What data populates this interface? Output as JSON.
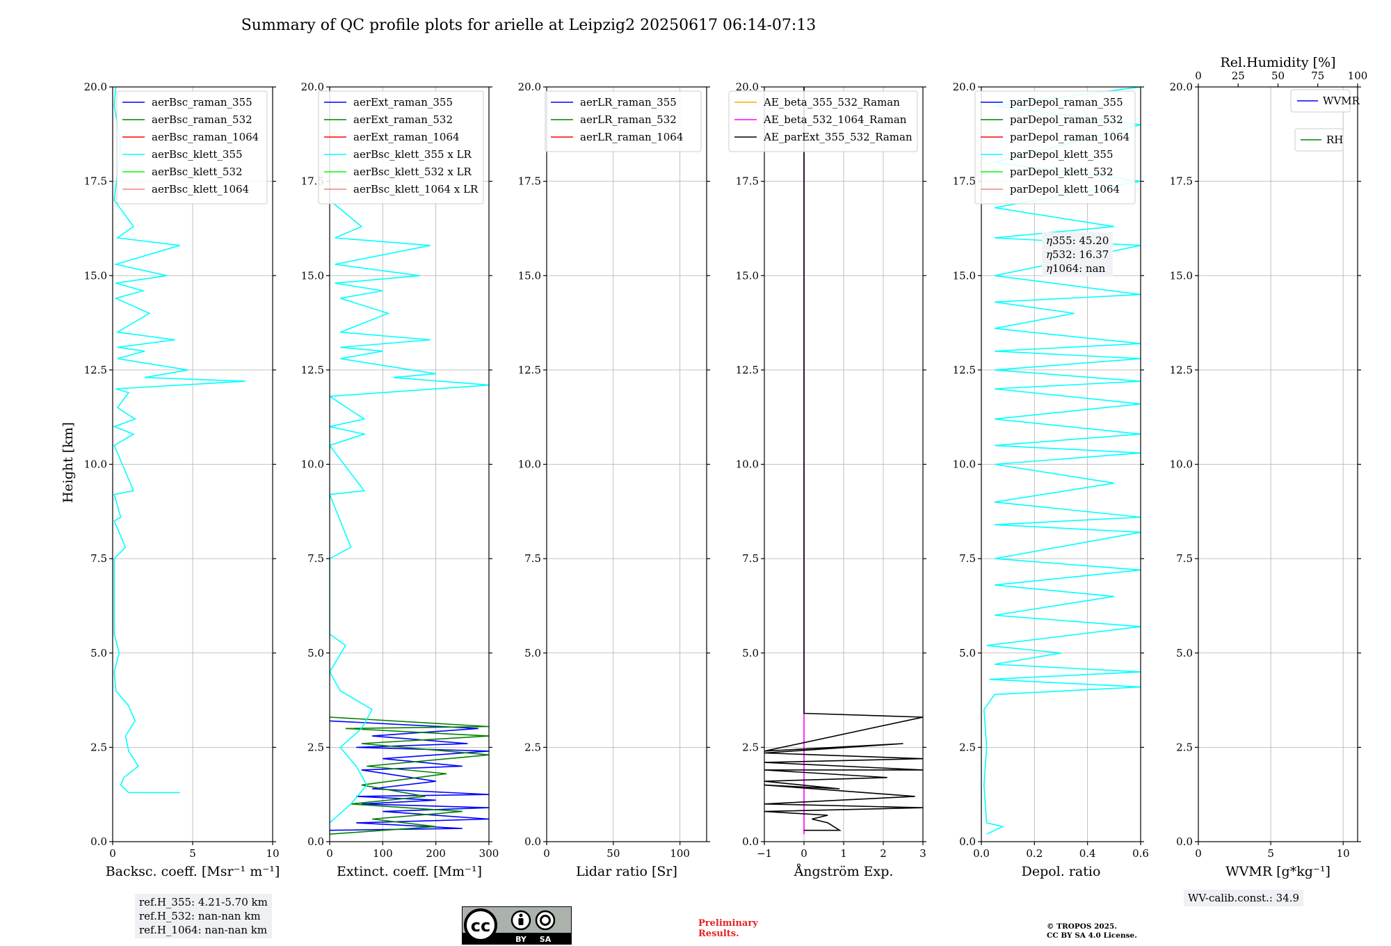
{
  "title": "Summary of QC profile plots for arielle at Leipzig2 20250617 06:14-07:13",
  "y_axis_label": "Height [km]",
  "ref_heights": [
    "ref.H_355: 4.21-5.70 km",
    "ref.H_532: nan-nan km",
    "ref.H_1064: nan-nan km"
  ],
  "eta_values": [
    "355: 45.20",
    "532: 16.37",
    "1064: nan"
  ],
  "eta_symbol": "η",
  "wv_calib": "WV-calib.const.: 34.9",
  "preliminary": [
    "Preliminary",
    "Results."
  ],
  "copyright": [
    "© TROPOS 2025.",
    "CC BY SA 4.0 License."
  ],
  "license_badge": {
    "cc": "cc",
    "by": "BY",
    "sa": "SA"
  },
  "colors": {
    "blue": "#0000ff",
    "green": "#008000",
    "red": "#ff0000",
    "cyan": "#00ffff",
    "lime": "#00ff00",
    "salmon": "#f08080",
    "orange": "#ffa500",
    "magenta": "#ff00ff",
    "black": "#000000"
  },
  "chart_data": [
    {
      "type": "line",
      "xlabel": "Backsc. coeff. [Msr⁻¹ m⁻¹]",
      "xlim": [
        0,
        10
      ],
      "ylim": [
        0,
        20
      ],
      "xticks": [
        "0",
        "5",
        "10"
      ],
      "yticks": [
        "0.0",
        "2.5",
        "5.0",
        "7.5",
        "10.0",
        "12.5",
        "15.0",
        "17.5",
        "20.0"
      ],
      "grid": true,
      "legend_position": "top-right",
      "series": [
        {
          "name": "aerBsc_raman_355",
          "color": "#0000ff",
          "points": []
        },
        {
          "name": "aerBsc_raman_532",
          "color": "#008000",
          "points": []
        },
        {
          "name": "aerBsc_raman_1064",
          "color": "#ff0000",
          "points": []
        },
        {
          "name": "aerBsc_klett_355",
          "color": "#00ffff",
          "points": [
            [
              4.2,
              1.3
            ],
            [
              1.0,
              1.3
            ],
            [
              0.5,
              1.5
            ],
            [
              0.7,
              1.7
            ],
            [
              1.6,
              2.0
            ],
            [
              1.0,
              2.4
            ],
            [
              0.8,
              2.8
            ],
            [
              1.4,
              3.2
            ],
            [
              1.0,
              3.6
            ],
            [
              0.2,
              4.0
            ],
            [
              0.1,
              4.5
            ],
            [
              0.4,
              5.0
            ],
            [
              0.1,
              5.5
            ],
            [
              0.1,
              7.5
            ],
            [
              0.8,
              7.8
            ],
            [
              0.1,
              8.5
            ],
            [
              0.5,
              8.6
            ],
            [
              0.1,
              9.2
            ],
            [
              1.3,
              9.3
            ],
            [
              0.1,
              10.5
            ],
            [
              1.3,
              10.8
            ],
            [
              0.1,
              11.0
            ],
            [
              1.4,
              11.2
            ],
            [
              0.3,
              11.5
            ],
            [
              1.0,
              11.9
            ],
            [
              0.2,
              12.0
            ],
            [
              8.3,
              12.2
            ],
            [
              2.0,
              12.3
            ],
            [
              4.7,
              12.5
            ],
            [
              0.3,
              12.8
            ],
            [
              2.0,
              13.0
            ],
            [
              0.3,
              13.1
            ],
            [
              3.9,
              13.3
            ],
            [
              0.3,
              13.5
            ],
            [
              2.3,
              14.0
            ],
            [
              0.2,
              14.4
            ],
            [
              1.9,
              14.6
            ],
            [
              0.2,
              14.8
            ],
            [
              3.4,
              15.0
            ],
            [
              0.2,
              15.3
            ],
            [
              4.2,
              15.8
            ],
            [
              0.3,
              16.0
            ],
            [
              1.3,
              16.3
            ],
            [
              0.1,
              17.0
            ],
            [
              0.5,
              18.5
            ],
            [
              0.1,
              19.5
            ],
            [
              0.2,
              20.0
            ]
          ]
        },
        {
          "name": "aerBsc_klett_532",
          "color": "#00ff00",
          "points": []
        },
        {
          "name": "aerBsc_klett_1064",
          "color": "#f08080",
          "points": []
        }
      ]
    },
    {
      "type": "line",
      "xlabel": "Extinct. coeff. [Mm⁻¹]",
      "xlim": [
        0,
        300
      ],
      "ylim": [
        0,
        20
      ],
      "xticks": [
        "0",
        "100",
        "200",
        "300"
      ],
      "yticks": [
        "0.0",
        "2.5",
        "5.0",
        "7.5",
        "10.0",
        "12.5",
        "15.0",
        "17.5",
        "20.0"
      ],
      "grid": true,
      "legend_position": "top-right",
      "series": [
        {
          "name": "aerExt_raman_355",
          "color": "#0000ff",
          "points": [
            [
              0,
              0.3
            ],
            [
              250,
              0.35
            ],
            [
              50,
              0.5
            ],
            [
              300,
              0.6
            ],
            [
              100,
              0.8
            ],
            [
              300,
              0.9
            ],
            [
              60,
              1.0
            ],
            [
              200,
              1.1
            ],
            [
              50,
              1.2
            ],
            [
              300,
              1.25
            ],
            [
              80,
              1.4
            ],
            [
              200,
              1.6
            ],
            [
              60,
              1.9
            ],
            [
              250,
              2.0
            ],
            [
              100,
              2.2
            ],
            [
              300,
              2.4
            ],
            [
              50,
              2.5
            ],
            [
              260,
              2.6
            ],
            [
              80,
              2.8
            ],
            [
              280,
              3.0
            ],
            [
              0,
              3.2
            ]
          ]
        },
        {
          "name": "aerExt_raman_532",
          "color": "#008000",
          "points": [
            [
              0,
              0.2
            ],
            [
              200,
              0.4
            ],
            [
              80,
              0.6
            ],
            [
              250,
              0.8
            ],
            [
              40,
              1.0
            ],
            [
              180,
              1.2
            ],
            [
              60,
              1.5
            ],
            [
              220,
              1.8
            ],
            [
              70,
              2.0
            ],
            [
              300,
              2.3
            ],
            [
              60,
              2.6
            ],
            [
              300,
              2.8
            ],
            [
              30,
              3.0
            ],
            [
              300,
              3.05
            ],
            [
              0,
              3.3
            ]
          ]
        },
        {
          "name": "aerExt_raman_1064",
          "color": "#ff0000",
          "points": []
        },
        {
          "name": "aerBsc_klett_355 x LR",
          "color": "#00ffff",
          "points": [
            [
              0,
              0.5
            ],
            [
              40,
              1.0
            ],
            [
              70,
              1.5
            ],
            [
              50,
              2.0
            ],
            [
              20,
              2.5
            ],
            [
              60,
              3.0
            ],
            [
              80,
              3.5
            ],
            [
              20,
              4.0
            ],
            [
              0,
              4.5
            ],
            [
              30,
              5.2
            ],
            [
              0,
              5.5
            ],
            [
              0,
              7.5
            ],
            [
              40,
              7.8
            ],
            [
              0,
              9.2
            ],
            [
              65,
              9.3
            ],
            [
              0,
              10.5
            ],
            [
              65,
              10.8
            ],
            [
              0,
              11.0
            ],
            [
              65,
              11.2
            ],
            [
              0,
              11.8
            ],
            [
              300,
              12.1
            ],
            [
              120,
              12.3
            ],
            [
              200,
              12.4
            ],
            [
              20,
              12.8
            ],
            [
              100,
              13.0
            ],
            [
              20,
              13.1
            ],
            [
              190,
              13.3
            ],
            [
              20,
              13.5
            ],
            [
              110,
              14.0
            ],
            [
              20,
              14.4
            ],
            [
              100,
              14.6
            ],
            [
              10,
              14.8
            ],
            [
              170,
              15.0
            ],
            [
              10,
              15.3
            ],
            [
              190,
              15.8
            ],
            [
              10,
              16.0
            ],
            [
              60,
              16.3
            ],
            [
              0,
              17.0
            ],
            [
              0,
              20.0
            ]
          ]
        },
        {
          "name": "aerBsc_klett_532 x LR",
          "color": "#00ff00",
          "points": []
        },
        {
          "name": "aerBsc_klett_1064 x LR",
          "color": "#f08080",
          "points": []
        }
      ]
    },
    {
      "type": "line",
      "xlabel": "Lidar ratio [Sr]",
      "xlim": [
        0,
        120
      ],
      "ylim": [
        0,
        20
      ],
      "xticks": [
        "0",
        "50",
        "100"
      ],
      "yticks": [
        "0.0",
        "2.5",
        "5.0",
        "7.5",
        "10.0",
        "12.5",
        "15.0",
        "17.5",
        "20.0"
      ],
      "grid": true,
      "legend_position": "top-right",
      "series": [
        {
          "name": "aerLR_raman_355",
          "color": "#0000ff",
          "points": []
        },
        {
          "name": "aerLR_raman_532",
          "color": "#008000",
          "points": []
        },
        {
          "name": "aerLR_raman_1064",
          "color": "#ff0000",
          "points": []
        }
      ]
    },
    {
      "type": "line",
      "xlabel": "Ångström Exp.",
      "xlim": [
        -1,
        3
      ],
      "ylim": [
        0,
        20
      ],
      "xticks": [
        "−1",
        "0",
        "1",
        "2",
        "3"
      ],
      "yticks": [
        "0.0",
        "2.5",
        "5.0",
        "7.5",
        "10.0",
        "12.5",
        "15.0",
        "17.5",
        "20.0"
      ],
      "grid": true,
      "legend_position": "top-right",
      "series": [
        {
          "name": "AE_beta_355_532_Raman",
          "color": "#ffa500",
          "points": []
        },
        {
          "name": "AE_beta_532_1064_Raman",
          "color": "#ff00ff",
          "points": [
            [
              0,
              0.2
            ],
            [
              0,
              20.0
            ]
          ]
        },
        {
          "name": "AE_parExt_355_532_Raman",
          "color": "#000000",
          "points": [
            [
              0,
              0.3
            ],
            [
              0.9,
              0.3
            ],
            [
              0.6,
              0.5
            ],
            [
              0.2,
              0.6
            ],
            [
              0.6,
              0.7
            ],
            [
              -1,
              0.8
            ],
            [
              3,
              0.9
            ],
            [
              -1,
              1.0
            ],
            [
              2.8,
              1.2
            ],
            [
              -1,
              1.5
            ],
            [
              0.9,
              1.4
            ],
            [
              -1,
              1.6
            ],
            [
              2.1,
              1.7
            ],
            [
              -1,
              1.9
            ],
            [
              3,
              1.9
            ],
            [
              -1,
              2.1
            ],
            [
              3,
              2.2
            ],
            [
              -1,
              2.35
            ],
            [
              2.5,
              2.6
            ],
            [
              -1,
              2.4
            ],
            [
              3,
              3.3
            ],
            [
              0,
              3.4
            ],
            [
              0,
              20.0
            ]
          ]
        }
      ]
    },
    {
      "type": "line",
      "xlabel": "Depol. ratio",
      "xlim": [
        0,
        0.6
      ],
      "ylim": [
        0,
        20
      ],
      "xticks": [
        "0.0",
        "0.2",
        "0.4",
        "0.6"
      ],
      "yticks": [
        "0.0",
        "2.5",
        "5.0",
        "7.5",
        "10.0",
        "12.5",
        "15.0",
        "17.5",
        "20.0"
      ],
      "grid": true,
      "legend_position": "top-right",
      "series": [
        {
          "name": "parDepol_raman_355",
          "color": "#0000ff",
          "points": []
        },
        {
          "name": "parDepol_raman_532",
          "color": "#008000",
          "points": []
        },
        {
          "name": "parDepol_raman_1064",
          "color": "#ff0000",
          "points": []
        },
        {
          "name": "parDepol_klett_355",
          "color": "#00ffff",
          "points": [
            [
              0.02,
              0.2
            ],
            [
              0.08,
              0.4
            ],
            [
              0.02,
              0.5
            ],
            [
              0.01,
              1.5
            ],
            [
              0.02,
              2.5
            ],
            [
              0.01,
              3.5
            ],
            [
              0.05,
              3.9
            ],
            [
              0.6,
              4.1
            ],
            [
              0.03,
              4.3
            ],
            [
              0.6,
              4.5
            ],
            [
              0.05,
              4.7
            ],
            [
              0.3,
              5.0
            ],
            [
              0.02,
              5.2
            ],
            [
              0.6,
              5.7
            ],
            [
              0.05,
              6.0
            ],
            [
              0.5,
              6.5
            ],
            [
              0.05,
              6.8
            ],
            [
              0.6,
              7.2
            ],
            [
              0.05,
              7.5
            ],
            [
              0.6,
              8.2
            ],
            [
              0.05,
              8.4
            ],
            [
              0.6,
              8.6
            ],
            [
              0.05,
              9.0
            ],
            [
              0.5,
              9.5
            ],
            [
              0.05,
              10.0
            ],
            [
              0.6,
              10.3
            ],
            [
              0.05,
              10.5
            ],
            [
              0.6,
              10.8
            ],
            [
              0.05,
              11.2
            ],
            [
              0.6,
              11.6
            ],
            [
              0.05,
              12.0
            ],
            [
              0.6,
              12.2
            ],
            [
              0.05,
              12.5
            ],
            [
              0.6,
              12.8
            ],
            [
              0.05,
              13.0
            ],
            [
              0.6,
              13.2
            ],
            [
              0.05,
              13.6
            ],
            [
              0.35,
              14.0
            ],
            [
              0.05,
              14.3
            ],
            [
              0.6,
              14.5
            ],
            [
              0.05,
              15.0
            ],
            [
              0.6,
              15.8
            ],
            [
              0.05,
              16.0
            ],
            [
              0.5,
              16.3
            ],
            [
              0.05,
              16.8
            ],
            [
              0.6,
              17.5
            ],
            [
              0.05,
              18.0
            ],
            [
              0.6,
              19.0
            ],
            [
              0.05,
              19.5
            ],
            [
              0.6,
              20.0
            ]
          ]
        },
        {
          "name": "parDepol_klett_532",
          "color": "#00ff00",
          "points": []
        },
        {
          "name": "parDepol_klett_1064",
          "color": "#f08080",
          "points": []
        }
      ]
    },
    {
      "type": "line",
      "xlabel": "WVMR [g*kg⁻¹]",
      "x2label": "Rel.Humidity [%]",
      "xlim": [
        0,
        11
      ],
      "x2lim": [
        0,
        100
      ],
      "ylim": [
        0,
        20
      ],
      "xticks": [
        "0",
        "5",
        "10"
      ],
      "x2ticks": [
        "0",
        "25",
        "50",
        "75",
        "100"
      ],
      "yticks": [
        "0.0",
        "2.5",
        "5.0",
        "7.5",
        "10.0",
        "12.5",
        "15.0",
        "17.5",
        "20.0"
      ],
      "grid": true,
      "legend_position": "top-right",
      "series": [
        {
          "name": "WVMR",
          "color": "#0000ff",
          "points": []
        },
        {
          "name": "RH",
          "color": "#008000",
          "points": []
        }
      ]
    }
  ]
}
